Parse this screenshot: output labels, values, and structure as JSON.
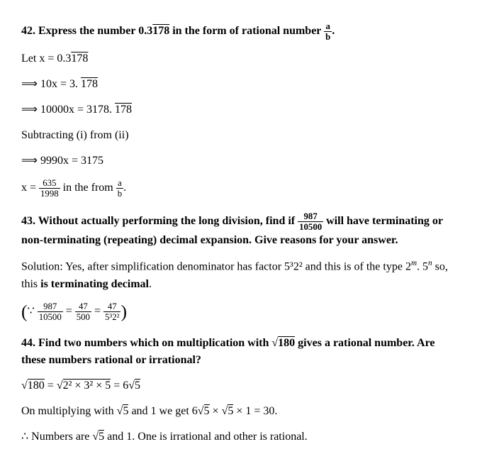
{
  "q42": {
    "title_pre": "42. Express the number 0.3",
    "title_rep": "178",
    "title_post": " in the form of rational number ",
    "frac_a": "a",
    "frac_b": "b",
    "period": ".",
    "l1_pre": "Let x = 0.3",
    "l1_rep": "178",
    "l2_pre": "⟹ 10x = 3. ",
    "l2_rep": "178",
    "l3_pre": "⟹ 10000x = 3178. ",
    "l3_rep": "178",
    "l4": "Subtracting (i) from (ii)",
    "l5": "⟹ 9990x = 3175",
    "l6_pre": "x = ",
    "l6_num": "635",
    "l6_den": "1998",
    "l6_mid": " in the from ",
    "l6_a": "a",
    "l6_b": "b"
  },
  "q43": {
    "t1": "43. Without actually performing the long division, find if ",
    "fnum": "987",
    "fden": "10500",
    "t2": " will have terminating or non-terminating (repeating) decimal expansion. Give reasons for your answer.",
    "s1": "Solution: Yes, after simplification denominator has factor 5³2² and this is of the type 2",
    "s1_m": "m",
    "s1_mid": ". 5",
    "s1_n": "n",
    "s1_post": " so, this ",
    "s1_bold": "is terminating decimal",
    "s1_end": ".",
    "e_because": "∵ ",
    "e_n1": "987",
    "e_d1": "10500",
    "e_eq": " = ",
    "e_n2": "47",
    "e_d2": "500",
    "e_n3": "47",
    "e_d3": "5³2²"
  },
  "q44": {
    "t1": "44. Find two numbers which on multiplication with ",
    "sq1": "180",
    "t2": " gives a rational number. Are these numbers rational or irrational?",
    "l1_sq1": "180",
    "l1_eq": " = ",
    "l1_sq2": "2² × 3² × 5",
    "l1_eq2": " = 6",
    "l1_sq3": "5",
    "l2_pre": "On multiplying with ",
    "l2_sq1": "5",
    "l2_mid": " and 1 we get 6",
    "l2_sq2": "5",
    "l2_mid2": " × ",
    "l2_sq3": "5",
    "l2_post": " × 1 = 30.",
    "l3_pre": "∴ Numbers are ",
    "l3_sq": "5",
    "l3_post": " and 1. One is irrational and other is rational."
  }
}
